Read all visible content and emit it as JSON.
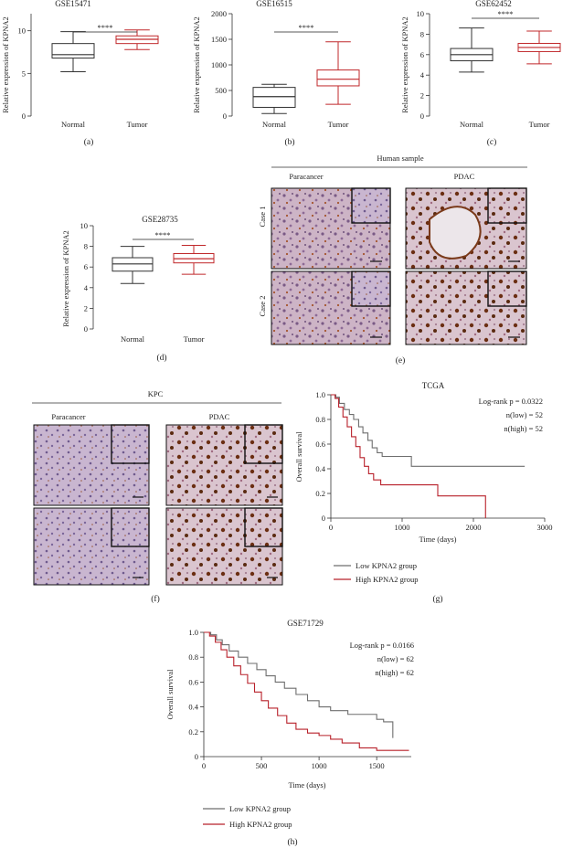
{
  "colors": {
    "normal": "#333333",
    "tumor": "#c0282b",
    "low_group": "#6e6e6e",
    "high_group": "#b8202a"
  },
  "boxplots": [
    {
      "panel": "(a)",
      "title": "GSE15471",
      "ylabel": "Relative expression of KPNA2",
      "yticks": [
        "0",
        "5",
        "10"
      ],
      "ylim": [
        0,
        12
      ],
      "categories": [
        "Normal",
        "Tumor"
      ],
      "signif": "****",
      "boxes": [
        {
          "min": 5.2,
          "q1": 6.8,
          "median": 7.2,
          "q3": 8.5,
          "max": 9.9
        },
        {
          "min": 7.8,
          "q1": 8.5,
          "median": 9.0,
          "q3": 9.4,
          "max": 10.1
        }
      ]
    },
    {
      "panel": "(b)",
      "title": "GSE16515",
      "ylabel": "Relative expression of KPNA2",
      "yticks": [
        "0",
        "500",
        "1000",
        "1500",
        "2000"
      ],
      "ylim": [
        0,
        2000
      ],
      "categories": [
        "Normal",
        "Tumor"
      ],
      "signif": "****",
      "boxes": [
        {
          "min": 50,
          "q1": 170,
          "median": 380,
          "q3": 560,
          "max": 620
        },
        {
          "min": 230,
          "q1": 590,
          "median": 720,
          "q3": 900,
          "max": 1450
        }
      ]
    },
    {
      "panel": "(c)",
      "title": "GSE62452",
      "ylabel": "Relative expression of KPNA2",
      "yticks": [
        "0",
        "2",
        "4",
        "6",
        "8",
        "10"
      ],
      "ylim": [
        0,
        10
      ],
      "categories": [
        "Normal",
        "Tumor"
      ],
      "signif": "****",
      "boxes": [
        {
          "min": 4.3,
          "q1": 5.4,
          "median": 6.0,
          "q3": 6.6,
          "max": 8.6
        },
        {
          "min": 5.1,
          "q1": 6.3,
          "median": 6.7,
          "q3": 7.1,
          "max": 8.3
        }
      ]
    },
    {
      "panel": "(d)",
      "title": "GSE28735",
      "ylabel": "Relative expression of KPNA2",
      "yticks": [
        "0",
        "2",
        "4",
        "6",
        "8",
        "10"
      ],
      "ylim": [
        0,
        10
      ],
      "categories": [
        "Normal",
        "Tumor"
      ],
      "signif": "****",
      "boxes": [
        {
          "min": 4.4,
          "q1": 5.6,
          "median": 6.3,
          "q3": 6.9,
          "max": 8.0
        },
        {
          "min": 5.3,
          "q1": 6.4,
          "median": 6.8,
          "q3": 7.3,
          "max": 8.1
        }
      ]
    }
  ],
  "panel_e": {
    "label": "(e)",
    "header": "Human sample",
    "cols": [
      "Paracancer",
      "PDAC"
    ],
    "rows": [
      "Case 1",
      "Case 2"
    ]
  },
  "panel_f": {
    "label": "(f)",
    "header": "KPC",
    "cols": [
      "Paracancer",
      "PDAC"
    ]
  },
  "chart_data": [
    {
      "type": "line",
      "panel": "(g)",
      "title": "TCGA",
      "xlabel": "Time (days)",
      "ylabel": "Overall survival",
      "xlim": [
        0,
        3000
      ],
      "ylim": [
        0,
        1.0
      ],
      "xticks": [
        "0",
        "1000",
        "2000",
        "3000"
      ],
      "yticks": [
        "0",
        "0.2",
        "0.4",
        "0.6",
        "0.8",
        "1.0"
      ],
      "annotations": [
        "Log-rank p = 0.0322",
        "n(low) = 52",
        "n(high) = 52"
      ],
      "legend": [
        "Low KPNA2 group",
        "High KPNA2 group"
      ],
      "series": [
        {
          "name": "Low KPNA2 group",
          "x": [
            0,
            70,
            120,
            190,
            260,
            320,
            390,
            450,
            520,
            580,
            650,
            720,
            1130,
            2720
          ],
          "y": [
            1.0,
            0.98,
            0.93,
            0.88,
            0.84,
            0.8,
            0.74,
            0.69,
            0.63,
            0.57,
            0.53,
            0.5,
            0.42,
            0.42
          ]
        },
        {
          "name": "High KPNA2 group",
          "x": [
            0,
            60,
            110,
            170,
            230,
            290,
            350,
            410,
            470,
            530,
            600,
            700,
            1500,
            2170,
            2170
          ],
          "y": [
            1.0,
            0.97,
            0.9,
            0.82,
            0.74,
            0.66,
            0.58,
            0.49,
            0.42,
            0.36,
            0.31,
            0.27,
            0.18,
            0.18,
            0.0
          ]
        }
      ]
    },
    {
      "type": "line",
      "panel": "(h)",
      "title": "GSE71729",
      "xlabel": "Time (days)",
      "ylabel": "Overall survival",
      "xlim": [
        0,
        1800
      ],
      "ylim": [
        0,
        1.0
      ],
      "xticks": [
        "0",
        "500",
        "1000",
        "1500"
      ],
      "yticks": [
        "0",
        "0.2",
        "0.4",
        "0.6",
        "0.8",
        "1.0"
      ],
      "annotations": [
        "Log-rank p = 0.0166",
        "n(low) = 62",
        "n(high) = 62"
      ],
      "legend": [
        "Low KPNA2 group",
        "High KPNA2 group"
      ],
      "series": [
        {
          "name": "Low KPNA2 group",
          "x": [
            0,
            60,
            110,
            160,
            220,
            300,
            380,
            460,
            540,
            620,
            700,
            800,
            900,
            1000,
            1100,
            1250,
            1400,
            1500,
            1560,
            1640,
            1640
          ],
          "y": [
            1.0,
            0.98,
            0.94,
            0.9,
            0.85,
            0.8,
            0.75,
            0.7,
            0.65,
            0.6,
            0.55,
            0.5,
            0.45,
            0.4,
            0.37,
            0.34,
            0.34,
            0.3,
            0.28,
            0.28,
            0.15
          ]
        },
        {
          "name": "High KPNA2 group",
          "x": [
            0,
            50,
            100,
            150,
            200,
            260,
            320,
            380,
            440,
            500,
            560,
            640,
            720,
            800,
            900,
            1000,
            1100,
            1200,
            1350,
            1500,
            1780
          ],
          "y": [
            1.0,
            0.97,
            0.92,
            0.86,
            0.8,
            0.73,
            0.66,
            0.59,
            0.52,
            0.45,
            0.39,
            0.33,
            0.27,
            0.22,
            0.19,
            0.17,
            0.14,
            0.11,
            0.07,
            0.05,
            0.05
          ]
        }
      ]
    }
  ]
}
